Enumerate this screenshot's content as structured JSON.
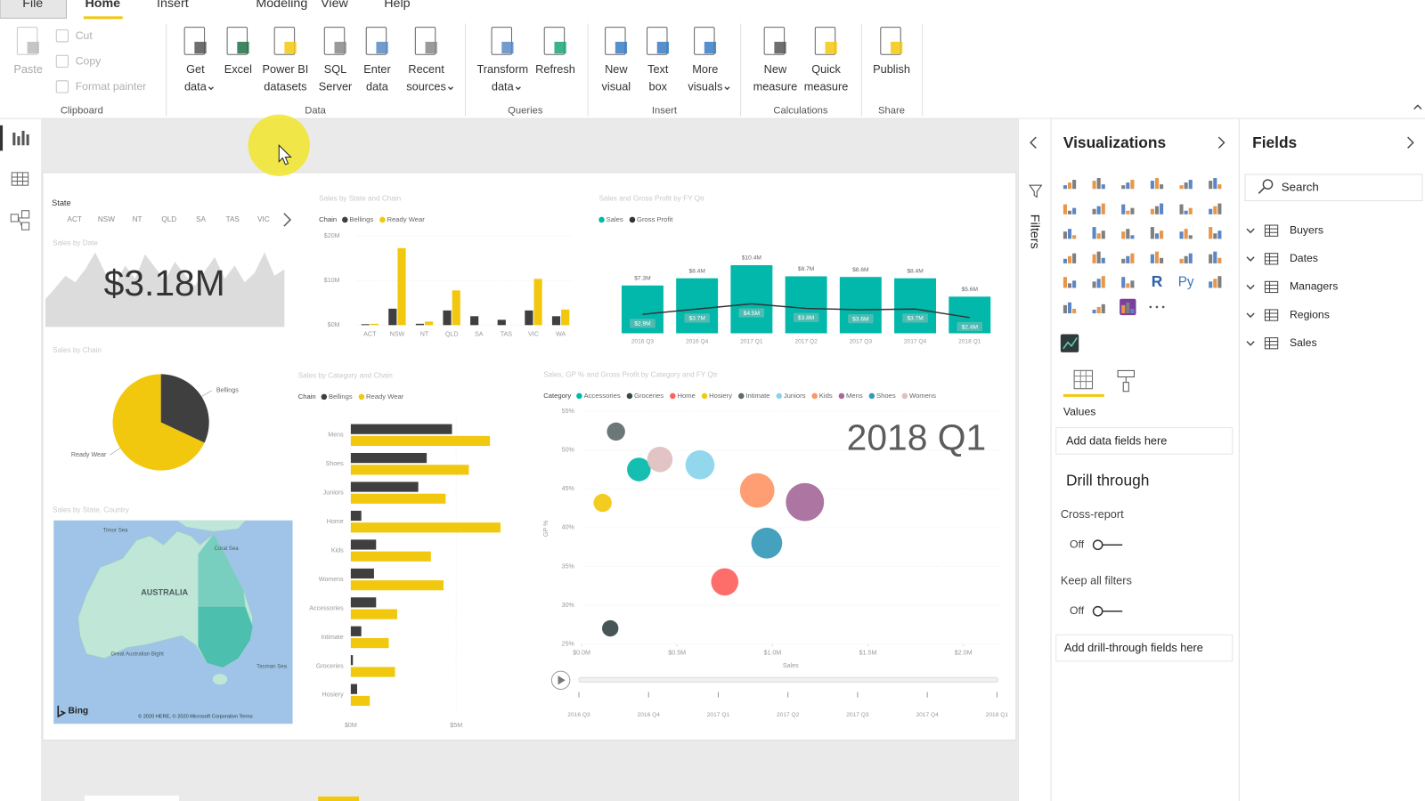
{
  "ribbon": {
    "tabs": [
      "File",
      "Home",
      "Insert",
      "Modeling",
      "View",
      "Help"
    ],
    "groups": [
      {
        "label": "Clipboard",
        "buttons": [
          [
            "Paste"
          ],
          [
            "Cut"
          ],
          [
            "Copy"
          ],
          [
            "Format painter"
          ]
        ]
      },
      {
        "label": "Data",
        "buttons": [
          [
            "Get",
            "data"
          ],
          [
            "Excel"
          ],
          [
            "Power BI",
            "datasets"
          ],
          [
            "SQL",
            "Server"
          ],
          [
            "Enter",
            "data"
          ],
          [
            "Recent",
            "sources"
          ]
        ]
      },
      {
        "label": "Queries",
        "buttons": [
          [
            "Transform",
            "data"
          ],
          [
            "Refresh"
          ]
        ]
      },
      {
        "label": "Insert",
        "buttons": [
          [
            "New",
            "visual"
          ],
          [
            "Text",
            "box"
          ],
          [
            "More",
            "visuals"
          ]
        ]
      },
      {
        "label": "Calculations",
        "buttons": [
          [
            "New",
            "measure"
          ],
          [
            "Quick",
            "measure"
          ]
        ]
      },
      {
        "label": "Share",
        "buttons": [
          [
            "Publish"
          ]
        ]
      }
    ]
  },
  "report": {
    "slicer": {
      "title": "State",
      "items": [
        "ACT",
        "NSW",
        "NT",
        "QLD",
        "SA",
        "TAS",
        "VIC"
      ]
    },
    "card": {
      "title": "Sales by Date",
      "value": "$3.18M",
      "sparkline": [
        30,
        42,
        55,
        48,
        62,
        80,
        58,
        45,
        66,
        52,
        78,
        64,
        50,
        70,
        56,
        44,
        60,
        75,
        52,
        66,
        48,
        58,
        80,
        55,
        62
      ]
    },
    "sales_by_state": {
      "type": "bar",
      "title": "Sales by State and Chain",
      "legend_title": "Chain",
      "categories": [
        "ACT",
        "NSW",
        "NT",
        "QLD",
        "SA",
        "TAS",
        "VIC",
        "WA"
      ],
      "series": [
        {
          "name": "Bellings",
          "color": "#3f3f3f",
          "values": [
            0.2,
            3.7,
            0.3,
            3.3,
            2.0,
            1.2,
            3.3,
            2.0
          ]
        },
        {
          "name": "Ready Wear",
          "color": "#f2c80f",
          "values": [
            0.3,
            17.3,
            0.8,
            7.8,
            0,
            0,
            10.4,
            3.5
          ]
        }
      ],
      "ylim": [
        0,
        20
      ],
      "yticks": [
        {
          "value": 0,
          "label": "$0M"
        },
        {
          "value": 10,
          "label": "$10M"
        },
        {
          "value": 20,
          "label": "$20M"
        }
      ]
    },
    "sales_by_qtr": {
      "type": "combo",
      "title": "Sales and Gross Profit by FY Qtr",
      "categories": [
        "2016 Q3",
        "2016 Q4",
        "2017 Q1",
        "2017 Q2",
        "2017 Q3",
        "2017 Q4",
        "2018 Q1"
      ],
      "series": [
        {
          "name": "Sales",
          "color": "#01b8aa",
          "values": [
            7.3,
            8.4,
            10.4,
            8.7,
            8.6,
            8.4,
            5.6
          ],
          "value_labels": [
            "$7.3M",
            "$8.4M",
            "$10.4M",
            "$8.7M",
            "$8.6M",
            "$8.4M",
            "$5.6M"
          ]
        },
        {
          "name": "Gross Profit",
          "color": "#333333",
          "values": [
            2.9,
            3.7,
            4.5,
            3.8,
            3.6,
            3.7,
            2.4
          ],
          "value_labels": [
            "$2.9M",
            "$3.7M",
            "$4.5M",
            "$3.8M",
            "$3.6M",
            "$3.7M",
            "$2.4M"
          ]
        }
      ]
    },
    "sales_by_chain": {
      "type": "pie",
      "title": "Sales by Chain",
      "categories": [
        "Bellings",
        "Ready Wear"
      ],
      "values": [
        32,
        68
      ],
      "colors": [
        "#3f3f3f",
        "#f2c80f"
      ]
    },
    "map": {
      "title": "Sales by State, Country",
      "place_labels": [
        "Timor Sea",
        "Coral Sea",
        "AUSTRALIA",
        "Great Australian Bight",
        "Tasman Sea"
      ],
      "provider": "Bing",
      "copyright": "© 2020 HERE, © 2020 Microsoft Corporation Terms"
    },
    "sales_by_category": {
      "type": "hbar",
      "title": "Sales by Category and Chain",
      "legend_title": "Chain",
      "categories": [
        "Mens",
        "Shoes",
        "Juniors",
        "Home",
        "Kids",
        "Womens",
        "Accessories",
        "Intimate",
        "Groceries",
        "Hosiery"
      ],
      "series": [
        {
          "name": "Bellings",
          "color": "#3f3f3f",
          "values": [
            4.8,
            3.6,
            3.2,
            0.5,
            1.2,
            1.1,
            1.2,
            0.5,
            0.1,
            0.3
          ]
        },
        {
          "name": "Ready Wear",
          "color": "#f2c80f",
          "values": [
            6.6,
            5.6,
            4.5,
            7.1,
            3.8,
            4.4,
            2.2,
            1.8,
            2.1,
            0.9
          ]
        }
      ],
      "xlim": [
        0,
        7.5
      ],
      "xticks": [
        {
          "value": 0,
          "label": "$0M"
        },
        {
          "value": 5,
          "label": "$5M"
        }
      ]
    },
    "scatter": {
      "type": "scatter",
      "title": "Sales, GP % and Gross Profit by Category and FY Qtr",
      "legend_title": "Category",
      "categories": [
        "Accessories",
        "Groceries",
        "Home",
        "Hosiery",
        "Intimate",
        "Juniors",
        "Kids",
        "Mens",
        "Shoes",
        "Womens"
      ],
      "colors": [
        "#01b8aa",
        "#374649",
        "#fd625e",
        "#f2c80f",
        "#5f6b6d",
        "#8ad4eb",
        "#fe9666",
        "#a66999",
        "#3599b8",
        "#dfbfbf"
      ],
      "x": [
        0.3,
        0.15,
        0.75,
        0.11,
        0.18,
        0.62,
        0.92,
        1.17,
        0.97,
        0.41
      ],
      "y": [
        47.5,
        27.0,
        33.0,
        43.2,
        52.4,
        48.1,
        44.8,
        43.3,
        38.0,
        48.8
      ],
      "sizes": [
        13,
        9,
        15,
        10,
        10,
        16,
        19,
        21,
        17,
        14
      ],
      "xlim": [
        0,
        2.2
      ],
      "ylim": [
        25,
        55
      ],
      "xticks": [
        {
          "value": 0,
          "label": "$0.0M"
        },
        {
          "value": 0.5,
          "label": "$0.5M"
        },
        {
          "value": 1,
          "label": "$1.0M"
        },
        {
          "value": 1.5,
          "label": "$1.5M"
        },
        {
          "value": 2,
          "label": "$2.0M"
        }
      ],
      "yticks": [
        {
          "value": 25,
          "label": "25%"
        },
        {
          "value": 30,
          "label": "30%"
        },
        {
          "value": 35,
          "label": "35%"
        },
        {
          "value": 40,
          "label": "40%"
        },
        {
          "value": 45,
          "label": "45%"
        },
        {
          "value": 50,
          "label": "50%"
        },
        {
          "value": 55,
          "label": "55%"
        }
      ],
      "xlabel": "Sales",
      "ylabel": "GP %",
      "period_label": "2018 Q1",
      "play_axis": [
        "2016 Q3",
        "2016 Q4",
        "2017 Q1",
        "2017 Q2",
        "2017 Q3",
        "2017 Q4",
        "2018 Q1"
      ]
    }
  },
  "filters": {
    "title": "Filters"
  },
  "visualizations": {
    "title": "Visualizations",
    "script_icons": [
      "R",
      "Py"
    ],
    "values_label": "Values",
    "values_placeholder": "Add data fields here",
    "drill_through": {
      "title": "Drill through",
      "cross_report": "Cross-report",
      "cross_report_state": "Off",
      "keep_filters": "Keep all filters",
      "keep_filters_state": "Off",
      "placeholder": "Add drill-through fields here"
    }
  },
  "fields": {
    "title": "Fields",
    "search": "Search",
    "tables": [
      "Buyers",
      "Dates",
      "Managers",
      "Regions",
      "Sales"
    ]
  }
}
